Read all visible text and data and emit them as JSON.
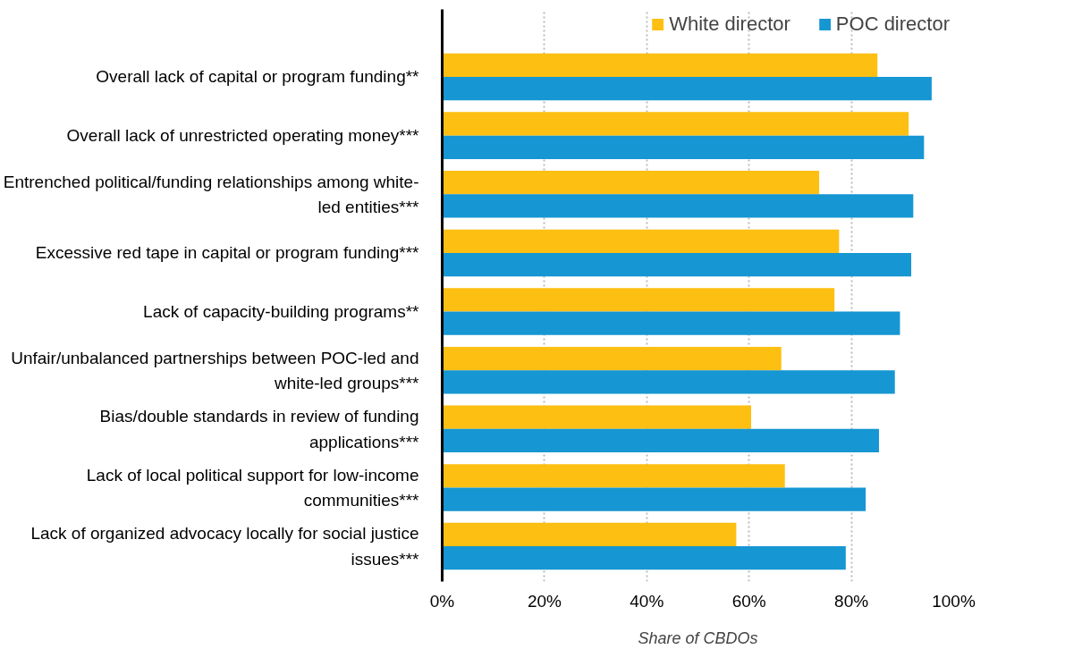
{
  "chart_data": {
    "type": "bar",
    "orientation": "horizontal",
    "xlabel": "Share of CBDOs",
    "categories": [
      "Overall lack of capital or program funding**",
      "Overall lack of unrestricted operating money***",
      "Entrenched political/funding relationships among white-led entities***",
      "Excessive red tape in capital or program funding***",
      "Lack of capacity-building programs**",
      "Unfair/unbalanced partnerships between POC-led and white-led groups***",
      "Bias/double standards in review of funding applications***",
      "Lack of local political support for low-income communities***",
      "Lack of organized advocacy locally for social justice issues***"
    ],
    "series": [
      {
        "name": "White director",
        "color": "#fdbf11",
        "values": [
          85.1,
          91.2,
          73.7,
          77.6,
          76.7,
          66.3,
          60.4,
          67.0,
          57.5
        ]
      },
      {
        "name": "POC director",
        "color": "#1696d2",
        "values": [
          95.7,
          94.2,
          92.1,
          91.7,
          89.5,
          88.5,
          85.4,
          82.8,
          78.9
        ]
      }
    ],
    "xlim": [
      0,
      100
    ],
    "xticks": [
      {
        "value": 0,
        "label": "0%"
      },
      {
        "value": 20,
        "label": "20%"
      },
      {
        "value": 40,
        "label": "40%"
      },
      {
        "value": 60,
        "label": "60%"
      },
      {
        "value": 80,
        "label": "80%"
      },
      {
        "value": 100,
        "label": "100%"
      }
    ],
    "grid": "x",
    "legend": "top right"
  }
}
